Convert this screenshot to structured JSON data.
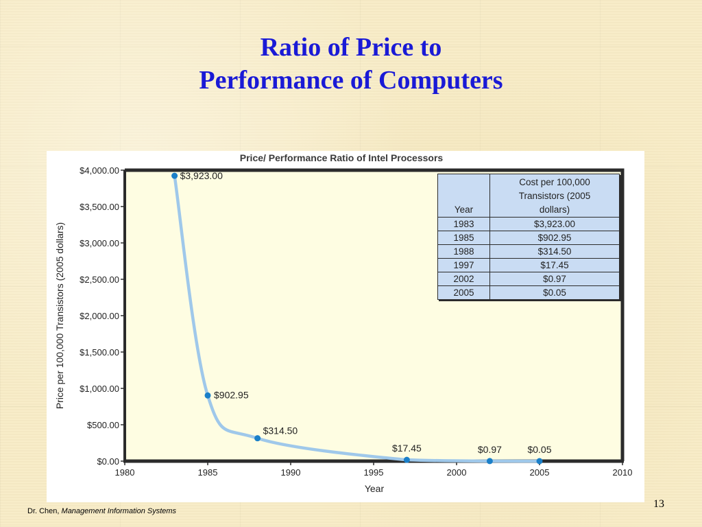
{
  "slide": {
    "title_line1": "Ratio of Price to",
    "title_line2": "Performance of Computers",
    "footer_author": "Dr. Chen, ",
    "footer_course": "Management Information Systems",
    "page_number": "13"
  },
  "chart_data": {
    "type": "line",
    "title": "Price/ Performance Ratio of Intel Processors",
    "xlabel": "Year",
    "ylabel": "Price per 100,000 Transistors (2005 dollars)",
    "xlim": [
      1980,
      2010
    ],
    "ylim": [
      0,
      4000
    ],
    "x_ticks": [
      "1980",
      "1985",
      "1990",
      "1995",
      "2000",
      "2005",
      "2010"
    ],
    "y_ticks": [
      "$0.00",
      "$500.00",
      "$1,000.00",
      "$1,500.00",
      "$2,000.00",
      "$2,500.00",
      "$3,000.00",
      "$3,500.00",
      "$4,000.00"
    ],
    "points": [
      {
        "x": 1983,
        "y": 3923.0,
        "label": "$3,923.00"
      },
      {
        "x": 1985,
        "y": 902.95,
        "label": "$902.95"
      },
      {
        "x": 1988,
        "y": 314.5,
        "label": "$314.50"
      },
      {
        "x": 1997,
        "y": 17.45,
        "label": "$17.45"
      },
      {
        "x": 2002,
        "y": 0.97,
        "label": "$0.97"
      },
      {
        "x": 2005,
        "y": 0.05,
        "label": "$0.05"
      }
    ],
    "grid": false,
    "colors": {
      "line": "#9fc8ea",
      "point": "#1a7fc8",
      "plot_bg": "#fefde2",
      "frame": "#2b2b2b"
    },
    "table": {
      "headers": [
        "Year",
        "Cost per 100,000 Transistors (2005 dollars)"
      ],
      "rows": [
        [
          "1983",
          "$3,923.00"
        ],
        [
          "1985",
          "$902.95"
        ],
        [
          "1988",
          "$314.50"
        ],
        [
          "1997",
          "$17.45"
        ],
        [
          "2002",
          "$0.97"
        ],
        [
          "2005",
          "$0.05"
        ]
      ]
    }
  }
}
